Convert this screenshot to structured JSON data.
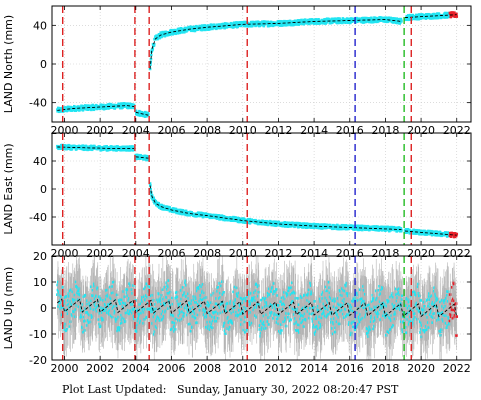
{
  "footer": {
    "label": "Plot Last Updated:",
    "value": "Sunday, January 30, 2022 08:20:47 PST"
  },
  "colors": {
    "data": "#22e5f2",
    "errorbar": "#b4b4b4",
    "model": "#000000",
    "recent": "#e8202a",
    "eq_line": "#dd2222",
    "antenna_line": "#2222cc",
    "other_line": "#22bb22"
  },
  "chart_data": [
    {
      "type": "scatter",
      "ylabel": "LAND North (mm)",
      "xlim": [
        1999.3,
        2022.8
      ],
      "ylim": [
        -60,
        60
      ],
      "xticks": [
        "2000",
        "2002",
        "2004",
        "2006",
        "2008",
        "2010",
        "2012",
        "2014",
        "2016",
        "2018",
        "2020",
        "2022"
      ],
      "yticks": [
        "-40",
        "0",
        "40"
      ],
      "grid": true,
      "segments": [
        {
          "x": [
            1999.6,
            2000.5,
            2001.5,
            2002.5,
            2003.5,
            2003.9
          ],
          "y": [
            -48,
            -46,
            -45,
            -44,
            -43,
            -44
          ]
        },
        {
          "x": [
            2004.0,
            2004.7
          ],
          "y": [
            -50,
            -53
          ]
        },
        {
          "x": [
            2004.8,
            2004.9,
            2005.1,
            2005.4,
            2006.0,
            2007.0,
            2008.0,
            2010.0,
            2012.0,
            2014.0,
            2016.0,
            2018.0,
            2018.9
          ],
          "y": [
            -5,
            15,
            26,
            30,
            33,
            36,
            38,
            41,
            42,
            44,
            45,
            46,
            44
          ]
        },
        {
          "x": [
            2019.1,
            2020.0,
            2021.0,
            2022.0
          ],
          "y": [
            48,
            49,
            50,
            51
          ]
        }
      ],
      "scatter_amp": 2.5
    },
    {
      "type": "scatter",
      "ylabel": "LAND East (mm)",
      "xlim": [
        1999.3,
        2022.8
      ],
      "ylim": [
        -80,
        80
      ],
      "xticks": [
        "2000",
        "2002",
        "2004",
        "2006",
        "2008",
        "2010",
        "2012",
        "2014",
        "2016",
        "2018",
        "2020",
        "2022"
      ],
      "yticks": [
        "-40",
        "0",
        "40"
      ],
      "grid": true,
      "segments": [
        {
          "x": [
            1999.6,
            2001.0,
            2002.5,
            2003.9
          ],
          "y": [
            60,
            59,
            58,
            58
          ]
        },
        {
          "x": [
            2004.0,
            2004.7
          ],
          "y": [
            46,
            44
          ]
        },
        {
          "x": [
            2004.8,
            2004.9,
            2005.1,
            2005.4,
            2006.0,
            2007.0,
            2008.0,
            2010.0,
            2012.0,
            2014.0,
            2016.0,
            2018.0,
            2018.9
          ],
          "y": [
            5,
            -10,
            -20,
            -25,
            -30,
            -35,
            -38,
            -45,
            -50,
            -53,
            -55,
            -57,
            -58
          ]
        },
        {
          "x": [
            2019.1,
            2020.0,
            2021.0,
            2022.0
          ],
          "y": [
            -60,
            -62,
            -64,
            -66
          ]
        }
      ],
      "scatter_amp": 3
    },
    {
      "type": "scatter",
      "ylabel": "LAND Up (mm)",
      "xlim": [
        1999.3,
        2022.8
      ],
      "ylim": [
        -20,
        20
      ],
      "xticks": [
        "2000",
        "2002",
        "2004",
        "2006",
        "2008",
        "2010",
        "2012",
        "2014",
        "2016",
        "2018",
        "2020",
        "2022"
      ],
      "yticks": [
        "-20",
        "-10",
        "0",
        "10",
        "20"
      ],
      "grid": true,
      "segments": [
        {
          "x": [
            1999.6,
            2022.0
          ],
          "y": [
            1,
            -1
          ]
        }
      ],
      "seasonal_amp": 4,
      "scatter_amp": 7,
      "error_amp": 9
    }
  ],
  "event_lines": [
    {
      "x": 1999.9,
      "kind": "eq_line"
    },
    {
      "x": 2003.95,
      "kind": "eq_line"
    },
    {
      "x": 2004.75,
      "kind": "eq_line"
    },
    {
      "x": 2010.25,
      "kind": "eq_line"
    },
    {
      "x": 2016.3,
      "kind": "antenna_line"
    },
    {
      "x": 2019.05,
      "kind": "other_line"
    },
    {
      "x": 2019.45,
      "kind": "eq_line"
    }
  ]
}
